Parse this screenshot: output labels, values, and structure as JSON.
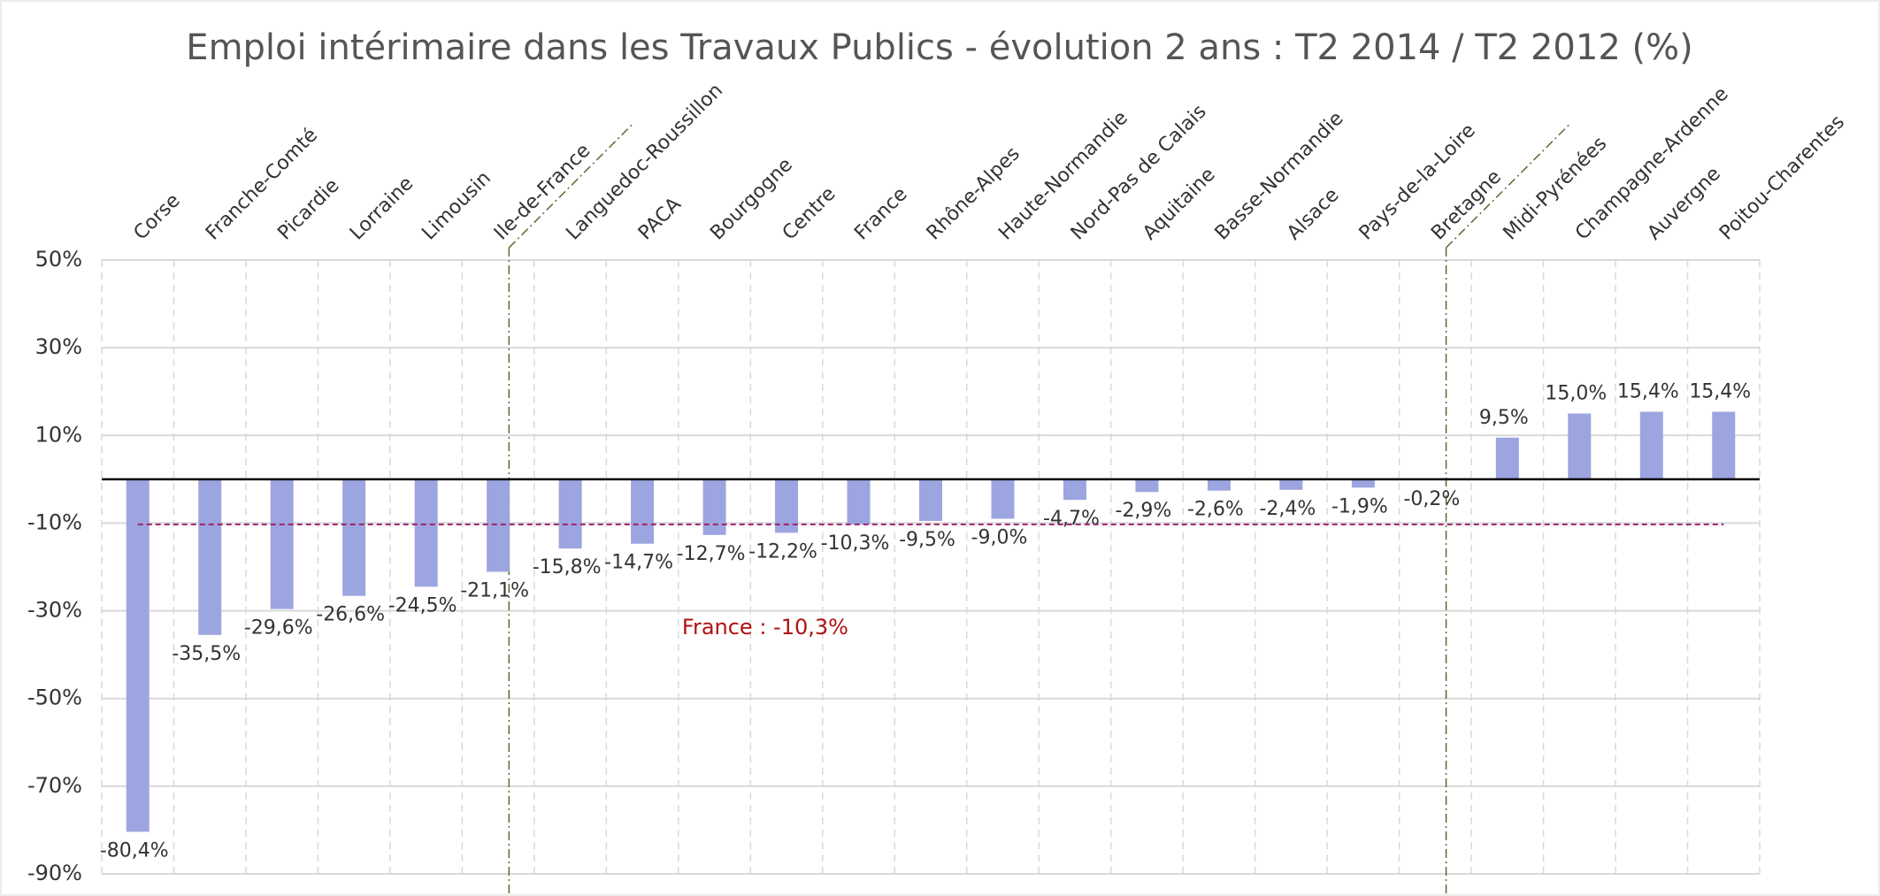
{
  "chart_data": {
    "type": "bar",
    "title": "Emploi intérimaire dans les Travaux Publics - évolution 2 ans : T2 2014 / T2 2012 (%)",
    "categories": [
      "Corse",
      "Franche-Comté",
      "Picardie",
      "Lorraine",
      "Limousin",
      "Ile-de-France",
      "Languedoc-Roussillon",
      "PACA",
      "Bourgogne",
      "Centre",
      "France",
      "Rhône-Alpes",
      "Haute-Normandie",
      "Nord-Pas de Calais",
      "Aquitaine",
      "Basse-Normandie",
      "Alsace",
      "Pays-de-la-Loire",
      "Bretagne",
      "Midi-Pyrénées",
      "Champagne-Ardenne",
      "Auvergne",
      "Poitou-Charentes"
    ],
    "values": [
      -80.4,
      -35.5,
      -29.6,
      -26.6,
      -24.5,
      -21.1,
      -15.8,
      -14.7,
      -12.7,
      -12.2,
      -10.3,
      -9.5,
      -9.0,
      -4.7,
      -2.9,
      -2.6,
      -2.4,
      -1.9,
      -0.2,
      9.5,
      15.0,
      15.4,
      15.4
    ],
    "value_labels": [
      "-80,4%",
      "-35,5%",
      "-29,6%",
      "-26,6%",
      "-24,5%",
      "-21,1%",
      "-15,8%",
      "-14,7%",
      "-12,7%",
      "-12,2%",
      "-10,3%",
      "-9,5%",
      "-9,0%",
      "-4,7%",
      "-2,9%",
      "-2,6%",
      "-2,4%",
      "-1,9%",
      "-0,2%",
      "9,5%",
      "15,0%",
      "15,4%",
      "15,4%"
    ],
    "color": "#9da5e0",
    "ylim": [
      -90,
      50
    ],
    "yticks": [
      {
        "value": 50,
        "label": "50%"
      },
      {
        "value": 30,
        "label": "30%"
      },
      {
        "value": 10,
        "label": "10%"
      },
      {
        "value": -10,
        "label": "-10%"
      },
      {
        "value": -30,
        "label": "-30%"
      },
      {
        "value": -50,
        "label": "-50%"
      },
      {
        "value": -70,
        "label": "-70%"
      },
      {
        "value": -90,
        "label": "-90%"
      }
    ],
    "grid": true,
    "reference_line": {
      "value": -10.3,
      "label": "France : -10,3%",
      "color": "#a0206a"
    }
  }
}
